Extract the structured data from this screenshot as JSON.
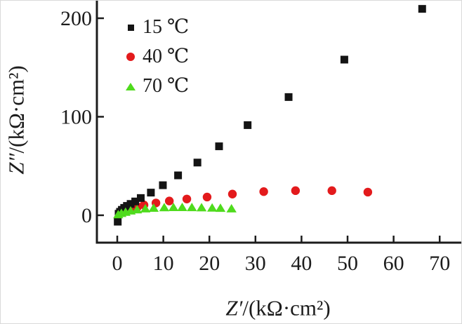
{
  "figure": {
    "background": "#ffffff",
    "axis_color": "#1c1c1c",
    "text_color": "#1c1c1c"
  },
  "chart_data": {
    "type": "scatter",
    "title": "",
    "xlabel_symbol": "Z′",
    "xlabel_unit": "/(kΩ·cm²)",
    "ylabel_symbol": "Z″",
    "ylabel_unit": "/(kΩ·cm²)",
    "x_ticks": [
      0,
      10,
      20,
      30,
      40,
      50,
      60,
      70
    ],
    "y_ticks": [
      0,
      100,
      200
    ],
    "xlim": [
      -4.5,
      75
    ],
    "ylim": [
      -27.8,
      217.8
    ],
    "grid": false,
    "legend_position": "upper-left-inside",
    "series": [
      {
        "name": "15 ℃",
        "marker": "square",
        "color": "#141414",
        "z": 2,
        "points": [
          [
            0.1,
            -6.5
          ],
          [
            0.3,
            1.5
          ],
          [
            0.6,
            3.5
          ],
          [
            1.0,
            5.5
          ],
          [
            1.5,
            7.5
          ],
          [
            2.1,
            9.5
          ],
          [
            2.9,
            11.5
          ],
          [
            3.9,
            14
          ],
          [
            5.1,
            17.5
          ],
          [
            7.3,
            23
          ],
          [
            9.9,
            30.5
          ],
          [
            13.2,
            40.5
          ],
          [
            17.4,
            53.5
          ],
          [
            22.1,
            70
          ],
          [
            28.3,
            91.5
          ],
          [
            37.2,
            120
          ],
          [
            49.3,
            158
          ],
          [
            66.2,
            209.5
          ]
        ]
      },
      {
        "name": "40 ℃",
        "marker": "circle",
        "color": "#e31a1c",
        "z": 1,
        "points": [
          [
            0.5,
            1.5
          ],
          [
            1.2,
            3
          ],
          [
            2.2,
            5
          ],
          [
            3.3,
            7
          ],
          [
            4.4,
            8.5
          ],
          [
            5.8,
            10.5
          ],
          [
            8.4,
            12.5
          ],
          [
            11.3,
            14.5
          ],
          [
            15.1,
            16.5
          ],
          [
            19.5,
            18.5
          ],
          [
            25.0,
            21.5
          ],
          [
            31.8,
            24
          ],
          [
            38.7,
            25
          ],
          [
            46.6,
            25
          ],
          [
            54.4,
            23.5
          ]
        ]
      },
      {
        "name": "70 ℃",
        "marker": "triangle",
        "color": "#4fdb1d",
        "z": 3,
        "points": [
          [
            0.2,
            0.5
          ],
          [
            0.9,
            1.8
          ],
          [
            1.8,
            3
          ],
          [
            2.9,
            4.3
          ],
          [
            4.3,
            5.5
          ],
          [
            6.1,
            6.5
          ],
          [
            7.9,
            7.1
          ],
          [
            10.2,
            7.6
          ],
          [
            12.2,
            7.8
          ],
          [
            14.1,
            7.8
          ],
          [
            16.2,
            7.7
          ],
          [
            18.3,
            7.5
          ],
          [
            20.6,
            7.3
          ],
          [
            22.4,
            7.0
          ],
          [
            24.8,
            6.5
          ]
        ]
      }
    ]
  }
}
